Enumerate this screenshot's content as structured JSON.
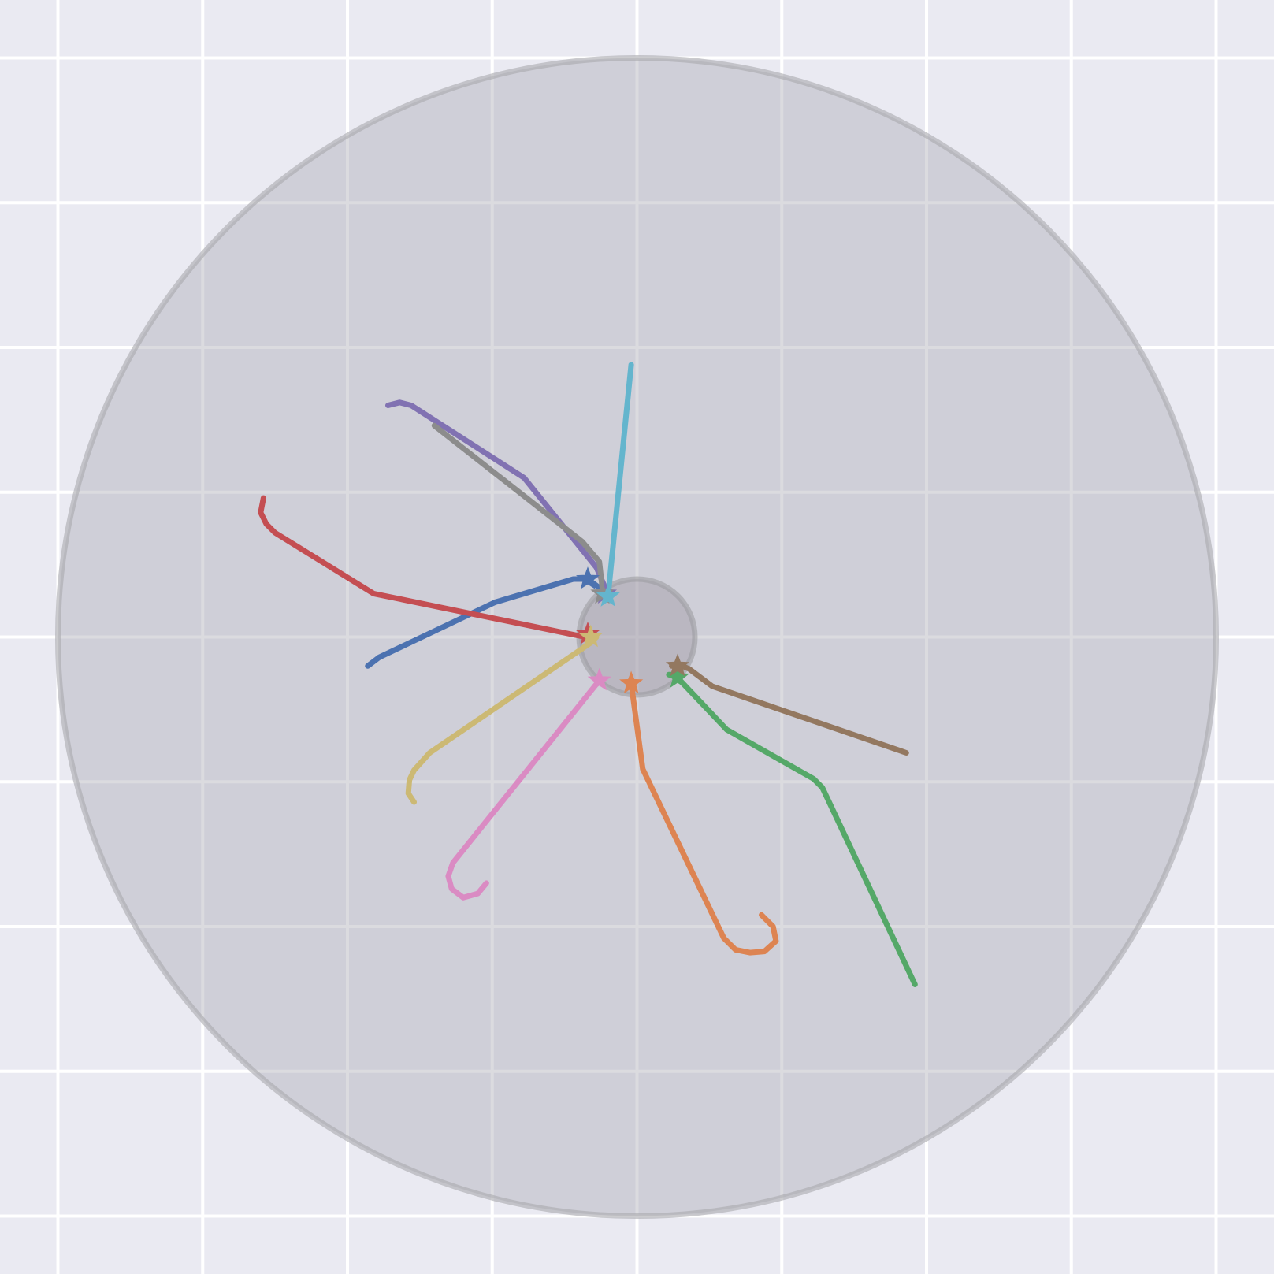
{
  "colors": {
    "background": "#eaeaf2",
    "grid": "#ffffff",
    "arena": "#b0b0b8",
    "goal": "#9a94a0"
  },
  "chart_data": {
    "type": "line",
    "xlim": [
      -1.1,
      1.1
    ],
    "ylim": [
      -1.1,
      1.1
    ],
    "grid": true,
    "arena": {
      "center": [
        0,
        0
      ],
      "radius": 1.0
    },
    "goal": {
      "center": [
        0,
        0
      ],
      "radius": 0.1
    },
    "series": [
      {
        "color": "#4c72b0",
        "points": [
          [
            -0.465,
            -0.05
          ],
          [
            -0.445,
            -0.035
          ],
          [
            -0.245,
            0.06
          ],
          [
            -0.11,
            0.1
          ],
          [
            -0.085,
            0.1
          ],
          [
            -0.065,
            0.085
          ]
        ],
        "marker": [
          -0.085,
          0.1
        ]
      },
      {
        "color": "#dd8452",
        "points": [
          [
            0.215,
            -0.48
          ],
          [
            0.235,
            -0.5
          ],
          [
            0.24,
            -0.525
          ],
          [
            0.22,
            -0.543
          ],
          [
            0.195,
            -0.545
          ],
          [
            0.17,
            -0.54
          ],
          [
            0.15,
            -0.52
          ],
          [
            0.01,
            -0.228
          ],
          [
            -0.01,
            -0.08
          ]
        ],
        "marker": [
          -0.01,
          -0.08
        ]
      },
      {
        "color": "#55a868",
        "points": [
          [
            0.48,
            -0.6
          ],
          [
            0.32,
            -0.26
          ],
          [
            0.305,
            -0.245
          ],
          [
            0.155,
            -0.16
          ],
          [
            0.065,
            -0.065
          ],
          [
            0.055,
            -0.065
          ],
          [
            0.075,
            -0.07
          ]
        ],
        "marker": [
          0.07,
          -0.07
        ]
      },
      {
        "color": "#c44e52",
        "points": [
          [
            -0.645,
            0.24
          ],
          [
            -0.65,
            0.215
          ],
          [
            -0.64,
            0.195
          ],
          [
            -0.625,
            0.18
          ],
          [
            -0.455,
            0.075
          ],
          [
            -0.09,
            0.0
          ],
          [
            -0.085,
            0.005
          ]
        ],
        "marker": [
          -0.085,
          0.005
        ]
      },
      {
        "color": "#8172b2",
        "points": [
          [
            -0.43,
            0.4
          ],
          [
            -0.41,
            0.405
          ],
          [
            -0.39,
            0.4
          ],
          [
            -0.195,
            0.275
          ],
          [
            -0.07,
            0.12
          ],
          [
            -0.055,
            0.085
          ]
        ],
        "marker": [
          -0.055,
          0.075
        ]
      },
      {
        "color": "#937860",
        "points": [
          [
            0.465,
            -0.2
          ],
          [
            0.13,
            -0.085
          ],
          [
            0.09,
            -0.055
          ],
          [
            0.07,
            -0.047
          ],
          [
            0.06,
            -0.05
          ]
        ],
        "marker": [
          0.07,
          -0.05
        ]
      },
      {
        "color": "#da8bc3",
        "points": [
          [
            -0.26,
            -0.425
          ],
          [
            -0.275,
            -0.443
          ],
          [
            -0.3,
            -0.45
          ],
          [
            -0.32,
            -0.435
          ],
          [
            -0.326,
            -0.413
          ],
          [
            -0.318,
            -0.39
          ],
          [
            -0.065,
            -0.075
          ]
        ],
        "marker": [
          -0.065,
          -0.075
        ]
      },
      {
        "color": "#8c8c8c",
        "points": [
          [
            -0.35,
            0.365
          ],
          [
            -0.095,
            0.165
          ],
          [
            -0.065,
            0.13
          ],
          [
            -0.06,
            0.085
          ]
        ],
        "marker": [
          -0.06,
          0.075
        ]
      },
      {
        "color": "#ccb974",
        "points": [
          [
            -0.385,
            -0.285
          ],
          [
            -0.395,
            -0.27
          ],
          [
            -0.393,
            -0.247
          ],
          [
            -0.385,
            -0.23
          ],
          [
            -0.358,
            -0.2
          ],
          [
            -0.08,
            -0.01
          ],
          [
            -0.07,
            0.0
          ]
        ],
        "marker": [
          -0.08,
          0.0
        ]
      },
      {
        "color": "#64b5cd",
        "points": [
          [
            -0.01,
            0.47
          ],
          [
            -0.05,
            0.07
          ]
        ],
        "marker": [
          -0.05,
          0.07
        ]
      }
    ]
  }
}
